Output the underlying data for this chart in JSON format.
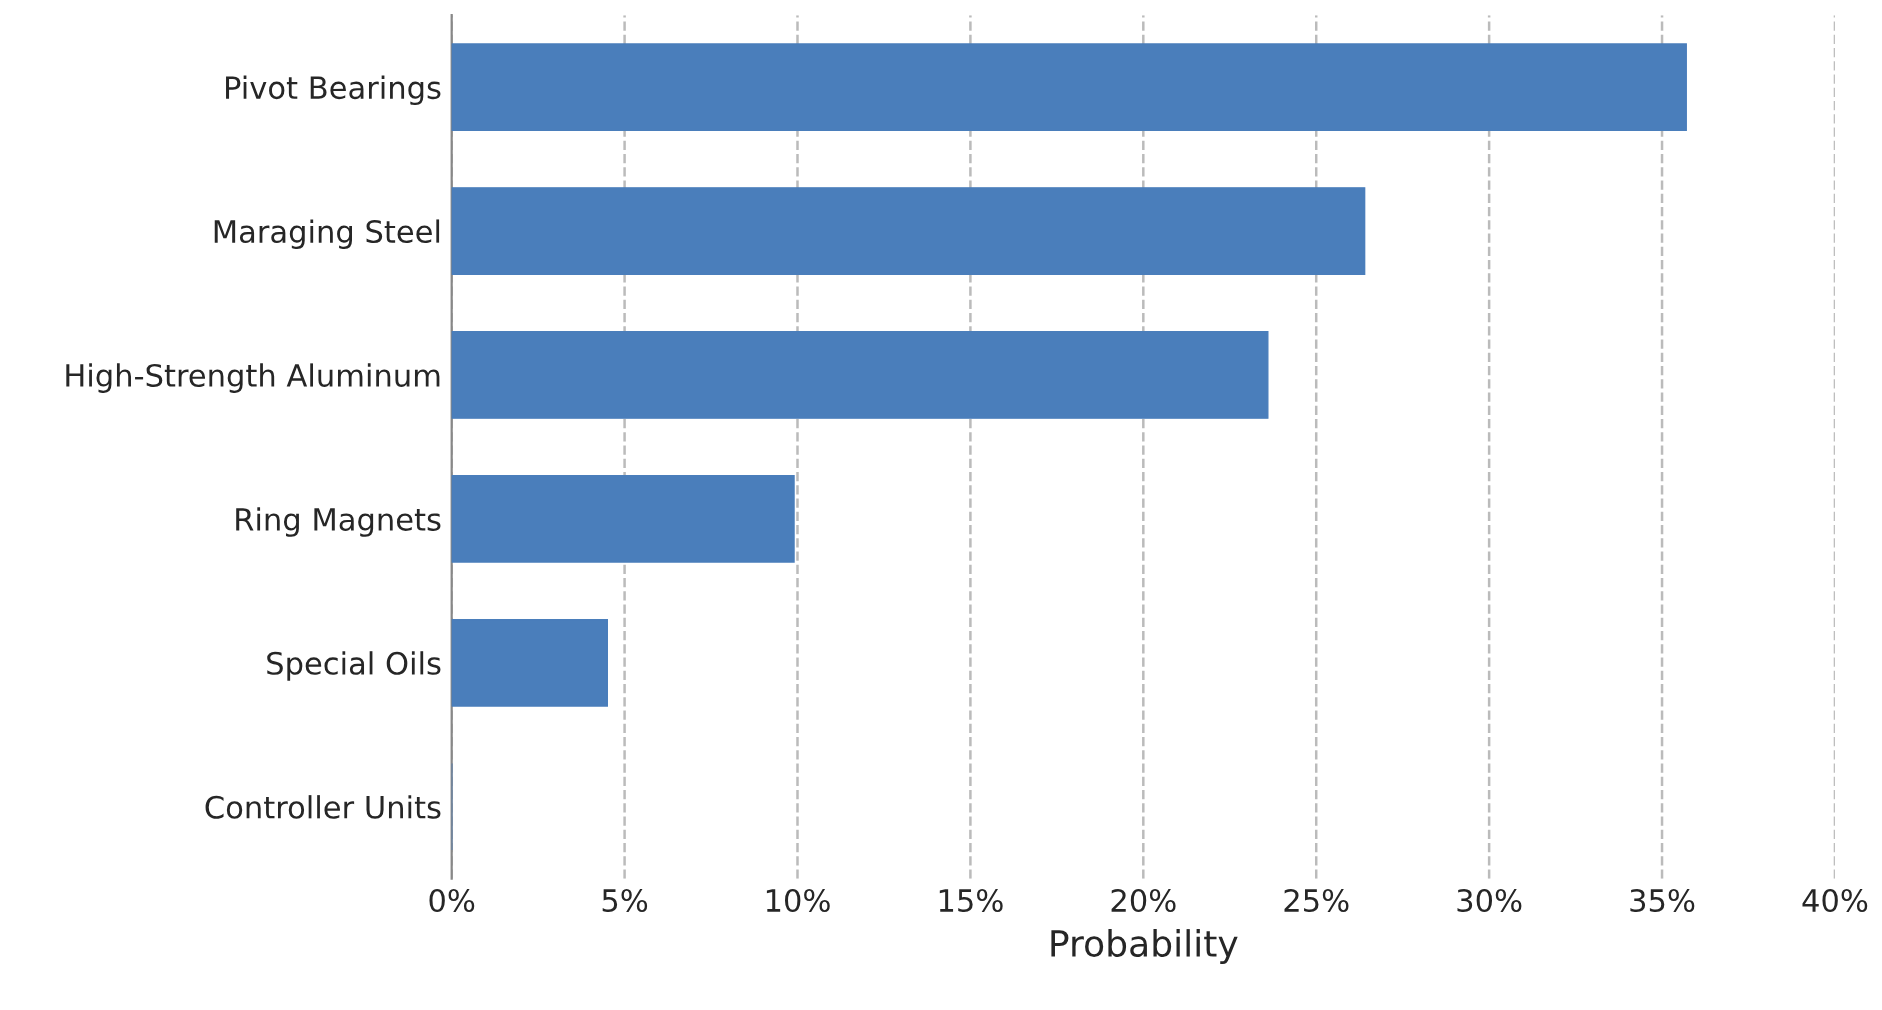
{
  "chart_data": {
    "type": "bar",
    "orientation": "horizontal",
    "xlabel": "Probability",
    "categories": [
      "Pivot Bearings",
      "Maraging Steel",
      "High-Strength Aluminum",
      "Ring Magnets",
      "Special Oils",
      "Controller Units"
    ],
    "values": [
      35.7,
      26.4,
      23.6,
      9.9,
      4.5,
      0
    ],
    "color": "#4a7ebb",
    "xlim": [
      0,
      40
    ],
    "xticks": [
      {
        "value": 0,
        "label": "0%"
      },
      {
        "value": 5,
        "label": "5%"
      },
      {
        "value": 10,
        "label": "10%"
      },
      {
        "value": 15,
        "label": "15%"
      },
      {
        "value": 20,
        "label": "20%"
      },
      {
        "value": 25,
        "label": "25%"
      },
      {
        "value": 30,
        "label": "30%"
      },
      {
        "value": 35,
        "label": "35%"
      },
      {
        "value": 40,
        "label": "40%"
      }
    ],
    "grid": "x"
  }
}
